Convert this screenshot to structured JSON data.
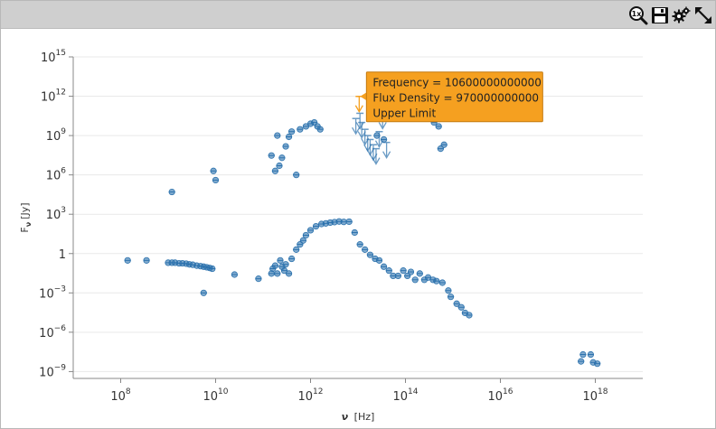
{
  "toolbar": {
    "reset_zoom_icon": "magnifier-1x-icon",
    "save_icon": "floppy-disk-icon",
    "settings_icon": "gears-icon",
    "fullscreen_icon": "diagonal-expand-arrows-icon"
  },
  "colors": {
    "point": "#2c72ad",
    "highlight": "#f5a020",
    "tooltip_border": "#c47a10",
    "grid": "#e9e9e9",
    "toolbar": "#cfcfcf"
  },
  "chart_data": {
    "type": "scatter",
    "x_scale": "log",
    "y_scale": "log",
    "xlabel_main": "ν",
    "xlabel_unit": "[Hz]",
    "ylabel_main": "F",
    "ylabel_sub": "ν",
    "ylabel_unit": "[Jy]",
    "xlim": [
      10000000.0,
      1e+19
    ],
    "ylim": [
      3e-10,
      1000000000000000.0
    ],
    "x_ticks": [
      {
        "exp": 8,
        "label": "10",
        "sup": "8"
      },
      {
        "exp": 10,
        "label": "10",
        "sup": "10"
      },
      {
        "exp": 12,
        "label": "10",
        "sup": "12"
      },
      {
        "exp": 14,
        "label": "10",
        "sup": "14"
      },
      {
        "exp": 16,
        "label": "10",
        "sup": "16"
      },
      {
        "exp": 18,
        "label": "10",
        "sup": "18"
      }
    ],
    "y_ticks": [
      {
        "exp": 15,
        "label": "10",
        "sup": "15"
      },
      {
        "exp": 12,
        "label": "10",
        "sup": "12"
      },
      {
        "exp": 9,
        "label": "10",
        "sup": "9"
      },
      {
        "exp": 6,
        "label": "10",
        "sup": "6"
      },
      {
        "exp": 3,
        "label": "10",
        "sup": "3"
      },
      {
        "exp": 0,
        "label": "1",
        "sup": ""
      },
      {
        "exp": -3,
        "label": "10",
        "sup": "−3"
      },
      {
        "exp": -6,
        "label": "10",
        "sup": "−6"
      },
      {
        "exp": -9,
        "label": "10",
        "sup": "−9"
      }
    ],
    "grid": "horizontal",
    "series": [
      {
        "points": [
          [
            140000000.0,
            0.3
          ],
          [
            350000000.0,
            0.3
          ],
          [
            1000000000.0,
            0.2
          ],
          [
            1200000000.0,
            0.2
          ],
          [
            1400000000.0,
            0.2
          ],
          [
            1700000000.0,
            0.18
          ],
          [
            2000000000.0,
            0.18
          ],
          [
            2400000000.0,
            0.17
          ],
          [
            2800000000.0,
            0.15
          ],
          [
            3300000000.0,
            0.14
          ],
          [
            4000000000.0,
            0.12
          ],
          [
            4800000000.0,
            0.11
          ],
          [
            5600000000.0,
            0.1
          ],
          [
            6500000000.0,
            0.09
          ],
          [
            7500000000.0,
            0.08
          ],
          [
            8500000000.0,
            0.07
          ],
          [
            5600000000.0,
            0.001
          ],
          [
            25000000000.0,
            0.025
          ],
          [
            80000000000.0,
            0.012
          ],
          [
            150000000000.0,
            0.03
          ],
          [
            160000000000.0,
            0.07
          ],
          [
            180000000000.0,
            0.12
          ],
          [
            200000000000.0,
            0.03
          ],
          [
            230000000000.0,
            0.3
          ],
          [
            250000000000.0,
            0.1
          ],
          [
            280000000000.0,
            0.05
          ],
          [
            300000000000.0,
            0.15
          ],
          [
            350000000000.0,
            0.03
          ],
          [
            400000000000.0,
            0.4
          ],
          [
            500000000000.0,
            2
          ],
          [
            600000000000.0,
            5
          ],
          [
            700000000000.0,
            10
          ],
          [
            800000000000.0,
            25
          ],
          [
            1000000000000.0,
            60
          ],
          [
            1300000000000.0,
            120
          ],
          [
            1700000000000.0,
            180
          ],
          [
            2100000000000.0,
            200
          ],
          [
            2600000000000.0,
            230
          ],
          [
            3200000000000.0,
            250
          ],
          [
            4000000000000.0,
            280
          ],
          [
            5000000000000.0,
            260
          ],
          [
            6500000000000.0,
            270
          ],
          [
            8500000000000.0,
            40
          ],
          [
            11000000000000.0,
            5
          ],
          [
            14000000000000.0,
            2
          ],
          [
            18000000000000.0,
            0.8
          ],
          [
            23000000000000.0,
            0.4
          ],
          [
            28000000000000.0,
            0.3
          ],
          [
            35000000000000.0,
            0.1
          ],
          [
            45000000000000.0,
            0.05
          ],
          [
            55000000000000.0,
            0.02
          ],
          [
            70000000000000.0,
            0.02
          ],
          [
            90000000000000.0,
            0.05
          ],
          [
            110000000000000.0,
            0.02
          ],
          [
            130000000000000.0,
            0.04
          ],
          [
            160000000000000.0,
            0.01
          ],
          [
            200000000000000.0,
            0.03
          ],
          [
            250000000000000.0,
            0.01
          ],
          [
            300000000000000.0,
            0.015
          ],
          [
            380000000000000.0,
            0.01
          ],
          [
            450000000000000.0,
            0.008
          ],
          [
            600000000000000.0,
            0.006
          ],
          [
            800000000000000.0,
            0.0015
          ],
          [
            900000000000000.0,
            0.0005
          ],
          [
            1200000000000000.0,
            0.00015
          ],
          [
            1500000000000000.0,
            8e-05
          ],
          [
            1800000000000000.0,
            3e-05
          ],
          [
            2200000000000000.0,
            2e-05
          ],
          [
            9000000000.0,
            2000000.0
          ],
          [
            10000000000.0,
            400000.0
          ],
          [
            1200000000.0,
            50000.0
          ],
          [
            200000000000.0,
            1000000000.0
          ],
          [
            150000000000.0,
            30000000.0
          ],
          [
            180000000000.0,
            2000000.0
          ],
          [
            220000000000.0,
            5000000.0
          ],
          [
            250000000000.0,
            20000000.0
          ],
          [
            300000000000.0,
            150000000.0
          ],
          [
            350000000000.0,
            800000000.0
          ],
          [
            400000000000.0,
            2000000000.0
          ],
          [
            500000000000.0,
            1000000.0
          ],
          [
            600000000000.0,
            3000000000.0
          ],
          [
            800000000000.0,
            5000000000.0
          ],
          [
            1000000000000.0,
            8000000000.0
          ],
          [
            1200000000000.0,
            10000000000.0
          ],
          [
            1400000000000.0,
            5000000000.0
          ],
          [
            1600000000000.0,
            3000000000.0
          ],
          [
            120000000000000.0,
            30000000000.0
          ],
          [
            150000000000000.0,
            20000000000.0
          ],
          [
            200000000000000.0,
            50000000000.0
          ],
          [
            300000000000000.0,
            30000000000.0
          ],
          [
            400000000000000.0,
            10000000000.0
          ],
          [
            500000000000000.0,
            5000000000.0
          ],
          [
            550000000000000.0,
            100000000.0
          ],
          [
            650000000000000.0,
            200000000.0
          ],
          [
            25000000000000.0,
            1000000000.0
          ],
          [
            35000000000000.0,
            500000000.0
          ],
          [
            5.5e+17,
            2e-08
          ],
          [
            5e+17,
            6e-09
          ],
          [
            8e+17,
            2e-08
          ],
          [
            9e+17,
            5e-09
          ],
          [
            1.1e+18,
            4e-09
          ]
        ]
      },
      {
        "upper_limits": [
          [
            9000000000000.0,
            20000000000.0
          ],
          [
            10600000000000.0,
            970000000000.0
          ],
          [
            11000000000000.0,
            50000000000.0
          ],
          [
            12000000000000.0,
            10000000000.0
          ],
          [
            14000000000000.0,
            3000000000.0
          ],
          [
            16000000000000.0,
            1000000000.0
          ],
          [
            18000000000000.0,
            500000000.0
          ],
          [
            21000000000000.0,
            200000000.0
          ],
          [
            24000000000000.0,
            100000000.0
          ],
          [
            28000000000000.0,
            2000000000.0
          ],
          [
            33000000000000.0,
            50000000000.0
          ],
          [
            40000000000000.0,
            300000000.0
          ]
        ]
      }
    ],
    "hover": {
      "x": 10600000000000.0,
      "y": 970000000000.0,
      "lines": [
        "Frequency = 10600000000000",
        "Flux Density = 970000000000",
        "Upper Limit"
      ]
    }
  }
}
